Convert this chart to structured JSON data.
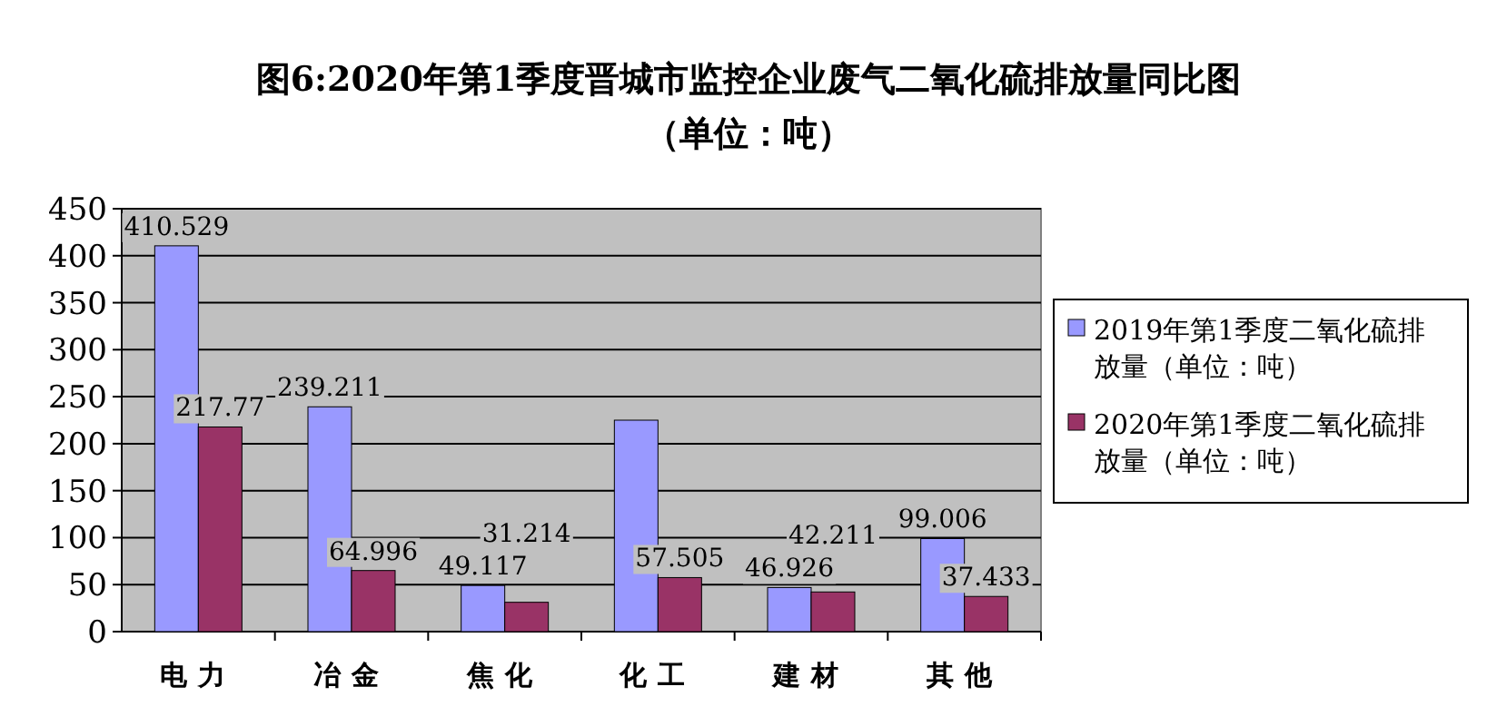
{
  "chart_data": {
    "type": "bar",
    "title": "图6:2020年第1季度晋城市监控企业废气二氧化硫排放量同比图（单位：吨）",
    "categories": [
      "电力",
      "冶金",
      "焦化",
      "化工",
      "建材",
      "其他"
    ],
    "series": [
      {
        "name": "2019年第1季度二氧化硫排放量（单位：吨）",
        "color": "#9999ff",
        "values": [
          410.529,
          239.211,
          49.117,
          225,
          46.926,
          99.006
        ],
        "value_labels": [
          "410.529",
          "239.211",
          "49.117",
          null,
          "46.926",
          "99.006"
        ]
      },
      {
        "name": "2020年第1季度二氧化硫排放量（单位：吨）",
        "color": "#993366",
        "values": [
          217.77,
          64.996,
          31.214,
          57.505,
          42.211,
          37.433
        ],
        "value_labels": [
          "217.77",
          "64.996",
          "31.214",
          "57.505",
          "42.211",
          "37.433"
        ]
      }
    ],
    "ylim": [
      0,
      450
    ],
    "yticks": [
      0,
      50,
      100,
      150,
      200,
      250,
      300,
      350,
      400,
      450
    ],
    "grid": "y",
    "legend": "right"
  }
}
